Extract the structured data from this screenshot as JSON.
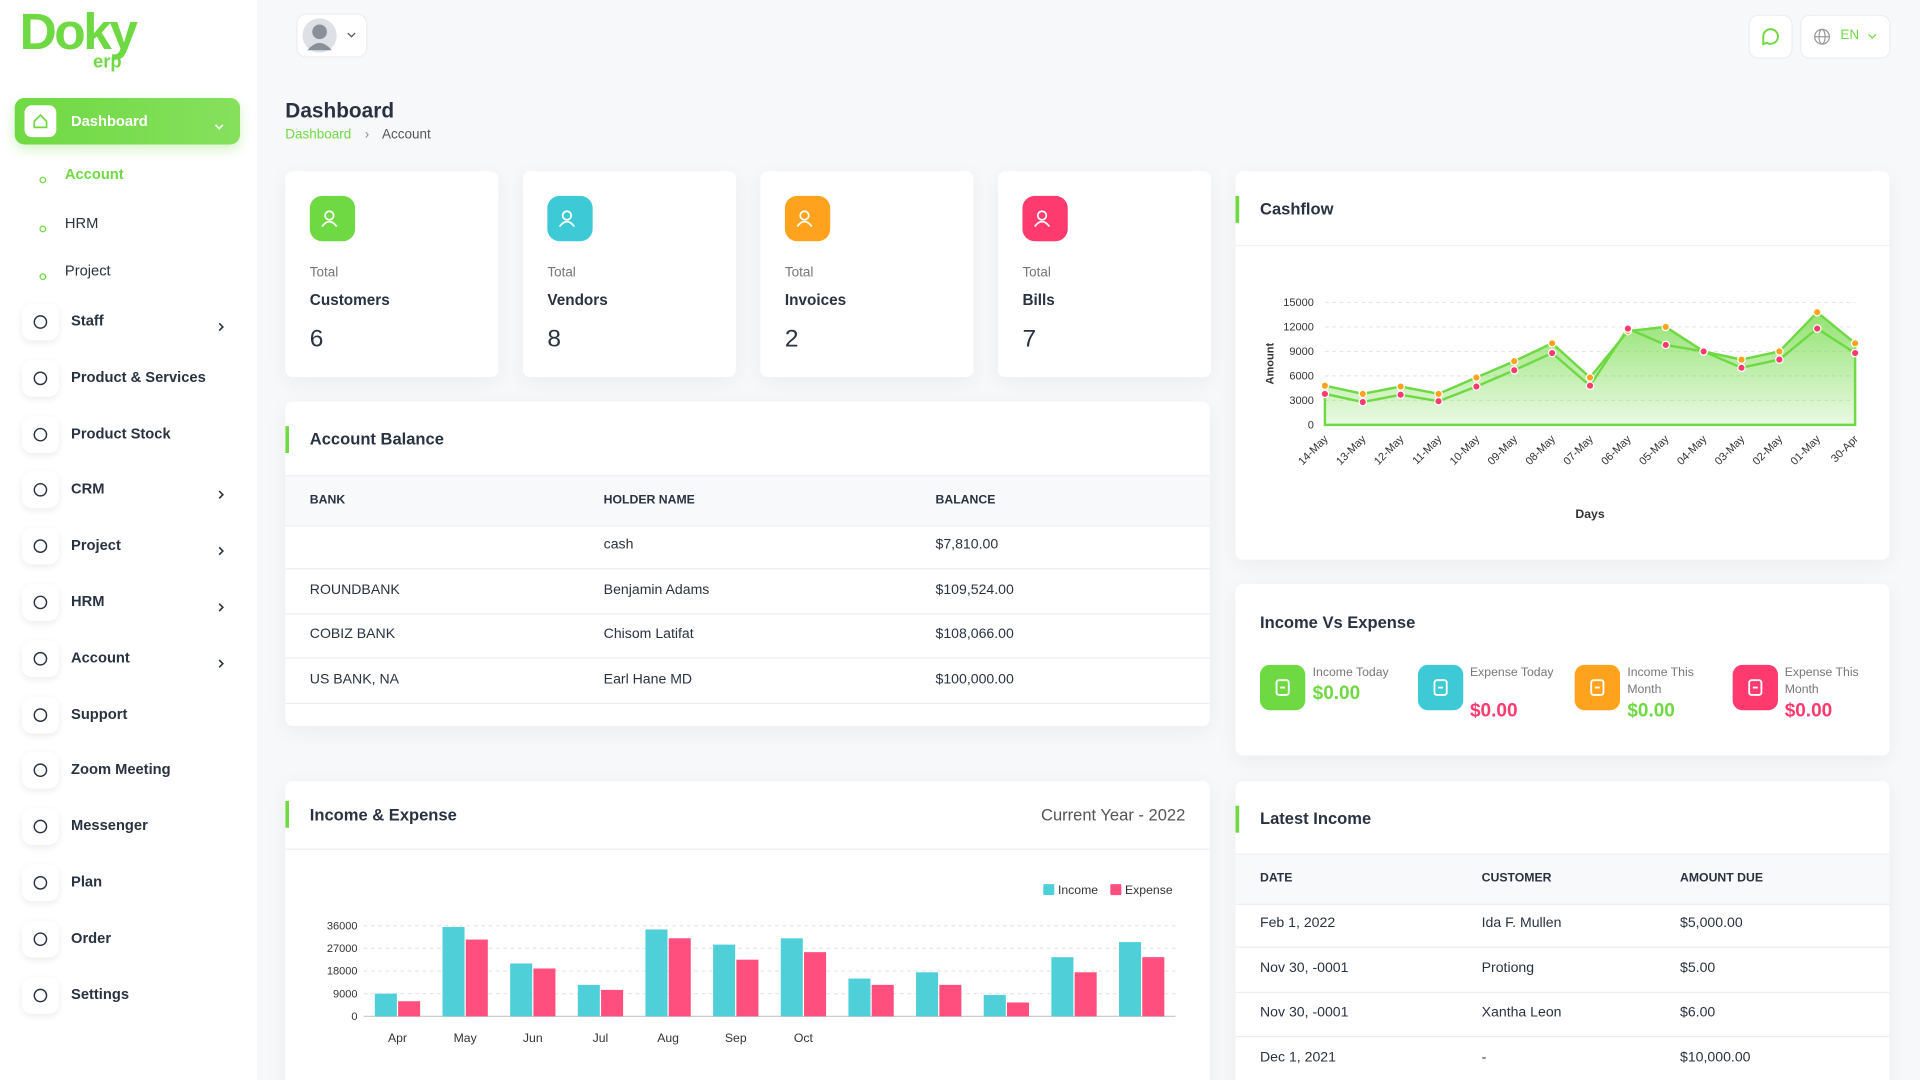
{
  "logo": {
    "name": "Doky",
    "suffix": "erp"
  },
  "topbar": {
    "language": "EN"
  },
  "sidebar": {
    "items": [
      {
        "label": "Dashboard",
        "active": true,
        "children": [
          "Account",
          "HRM",
          "Project"
        ]
      },
      {
        "label": "Staff",
        "expandable": true
      },
      {
        "label": "Product & Services"
      },
      {
        "label": "Product Stock"
      },
      {
        "label": "CRM",
        "expandable": true
      },
      {
        "label": "Project",
        "expandable": true
      },
      {
        "label": "HRM",
        "expandable": true
      },
      {
        "label": "Account",
        "expandable": true
      },
      {
        "label": "Support"
      },
      {
        "label": "Zoom Meeting"
      },
      {
        "label": "Messenger"
      },
      {
        "label": "Plan"
      },
      {
        "label": "Order"
      },
      {
        "label": "Settings"
      }
    ]
  },
  "header": {
    "title": "Dashboard",
    "breadcrumb": [
      "Dashboard",
      "Account"
    ]
  },
  "stats": [
    {
      "prefix": "Total",
      "label": "Customers",
      "value": 6,
      "color": "#6fd943"
    },
    {
      "prefix": "Total",
      "label": "Vendors",
      "value": 8,
      "color": "#3ec9d6"
    },
    {
      "prefix": "Total",
      "label": "Invoices",
      "value": 2,
      "color": "#ffa21d"
    },
    {
      "prefix": "Total",
      "label": "Bills",
      "value": 7,
      "color": "#ff3a6e"
    }
  ],
  "account_balance": {
    "title": "Account Balance",
    "columns": [
      "BANK",
      "HOLDER NAME",
      "BALANCE"
    ],
    "rows": [
      [
        null,
        "cash",
        "$7,810.00"
      ],
      [
        "ROUNDBANK",
        "Benjamin Adams",
        "$109,524.00"
      ],
      [
        "COBIZ BANK",
        "Chisom Latifat",
        "$108,066.00"
      ],
      [
        "US BANK, NA",
        "Earl Hane MD",
        "$100,000.00"
      ]
    ]
  },
  "income_vs_expense": {
    "title": "Income Vs Expense",
    "items": [
      {
        "label": "Income Today",
        "value": "$0.00",
        "color": "#6fd943"
      },
      {
        "label": "Expense Today",
        "value": "$0.00",
        "color": "#3ec9d6"
      },
      {
        "label": "Income This Month",
        "value": "$0.00",
        "color": "#ffa21d"
      },
      {
        "label": "Expense This Month",
        "value": "$0.00",
        "color": "#ff3a6e"
      }
    ]
  },
  "latest_income": {
    "title": "Latest Income",
    "columns": [
      "DATE",
      "CUSTOMER",
      "AMOUNT DUE"
    ],
    "rows": [
      [
        "Feb 1, 2022",
        "Ida F. Mullen",
        "$5,000.00"
      ],
      [
        "Nov 30, -0001",
        "Protiong",
        "$5.00"
      ],
      [
        "Nov 30, -0001",
        "Xantha Leon",
        "$6.00"
      ],
      [
        "Dec 1, 2021",
        "-",
        "$10,000.00"
      ]
    ]
  },
  "chart_data": [
    {
      "type": "area",
      "title": "Cashflow",
      "xlabel": "Days",
      "ylabel": "Amount",
      "line_color": "#6fd943",
      "grid": true,
      "categories": [
        "14-May",
        "13-May",
        "12-May",
        "11-May",
        "10-May",
        "09-May",
        "08-May",
        "07-May",
        "06-May",
        "05-May",
        "04-May",
        "03-May",
        "02-May",
        "01-May",
        "30-Apr"
      ],
      "series": [
        {
          "color": "#ffa21d",
          "values": [
            4800,
            3800,
            4700,
            3800,
            5800,
            7800,
            10000,
            5800,
            11500,
            12000,
            9000,
            8000,
            9000,
            13800,
            10000
          ]
        },
        {
          "color": "#ff3a6e",
          "values": [
            3800,
            2800,
            3700,
            2900,
            4700,
            6700,
            8800,
            4800,
            11800,
            9800,
            9000,
            7000,
            8000,
            11800,
            8800
          ]
        }
      ],
      "ylim": [
        0,
        15000
      ],
      "yticks": [
        0,
        3000,
        6000,
        9000,
        12000,
        15000
      ]
    },
    {
      "type": "bar",
      "title": "Income & Expense",
      "subtitle": "Current Year - 2022",
      "legend": "top-right",
      "grid": true,
      "categories": [
        "Apr",
        "May",
        "Jun",
        "Jul",
        "Aug",
        "Sep",
        "Oct",
        null,
        null,
        null,
        null,
        null
      ],
      "series": [
        {
          "name": "Income",
          "color": "#4fcfd8",
          "values": [
            9000,
            35500,
            21000,
            12500,
            34500,
            28500,
            31000,
            15000,
            17500,
            8500,
            23500,
            29500
          ]
        },
        {
          "name": "Expense",
          "color": "#ff4f7e",
          "values": [
            6000,
            30500,
            19000,
            10500,
            31000,
            22500,
            25500,
            12500,
            12500,
            5500,
            17500,
            23500
          ]
        }
      ],
      "ylim": [
        0,
        36000
      ],
      "yticks": [
        0,
        9000,
        18000,
        27000,
        36000
      ]
    }
  ]
}
